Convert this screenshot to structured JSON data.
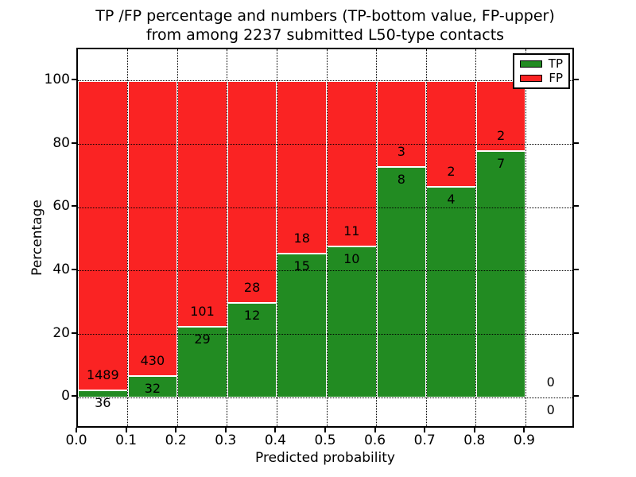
{
  "title": {
    "line1": "TP /FP percentage and numbers (TP-bottom value, FP-upper)",
    "line2": "from among 2237 submitted L50-type contacts"
  },
  "chart_data": {
    "type": "bar",
    "stacked": true,
    "normalized": "percent-of-bin-total",
    "note": "TP count labeled below segment boundary, FP count above; green bar height = TP/(TP+FP)*100, red fills to 100%",
    "xlabel": "Predicted probability",
    "ylabel": "Percentage",
    "xlim": [
      0.0,
      1.0
    ],
    "ylim": [
      -10,
      110
    ],
    "xticks": [
      "0.0",
      "0.1",
      "0.2",
      "0.3",
      "0.4",
      "0.5",
      "0.6",
      "0.7",
      "0.8",
      "0.9"
    ],
    "yticks": [
      "0",
      "20",
      "40",
      "60",
      "80",
      "100"
    ],
    "ytick_values": [
      0,
      20,
      40,
      60,
      80,
      100
    ],
    "grid": "dotted",
    "legend_position": "upper right",
    "bin_edges": [
      0.0,
      0.1,
      0.2,
      0.3,
      0.4,
      0.5,
      0.6,
      0.7,
      0.8,
      0.9,
      1.0
    ],
    "bins": [
      {
        "range": "0.0-0.1",
        "tp": 36,
        "fp": 1489
      },
      {
        "range": "0.1-0.2",
        "tp": 32,
        "fp": 430
      },
      {
        "range": "0.2-0.3",
        "tp": 29,
        "fp": 101
      },
      {
        "range": "0.3-0.4",
        "tp": 12,
        "fp": 28
      },
      {
        "range": "0.4-0.5",
        "tp": 15,
        "fp": 18
      },
      {
        "range": "0.5-0.6",
        "tp": 10,
        "fp": 11
      },
      {
        "range": "0.6-0.7",
        "tp": 8,
        "fp": 3
      },
      {
        "range": "0.7-0.8",
        "tp": 4,
        "fp": 2
      },
      {
        "range": "0.8-0.9",
        "tp": 7,
        "fp": 2
      },
      {
        "range": "0.9-1.0",
        "tp": 0,
        "fp": 0
      }
    ],
    "series": [
      {
        "name": "TP",
        "color": "#228b22"
      },
      {
        "name": "FP",
        "color": "#fa2323"
      }
    ]
  }
}
